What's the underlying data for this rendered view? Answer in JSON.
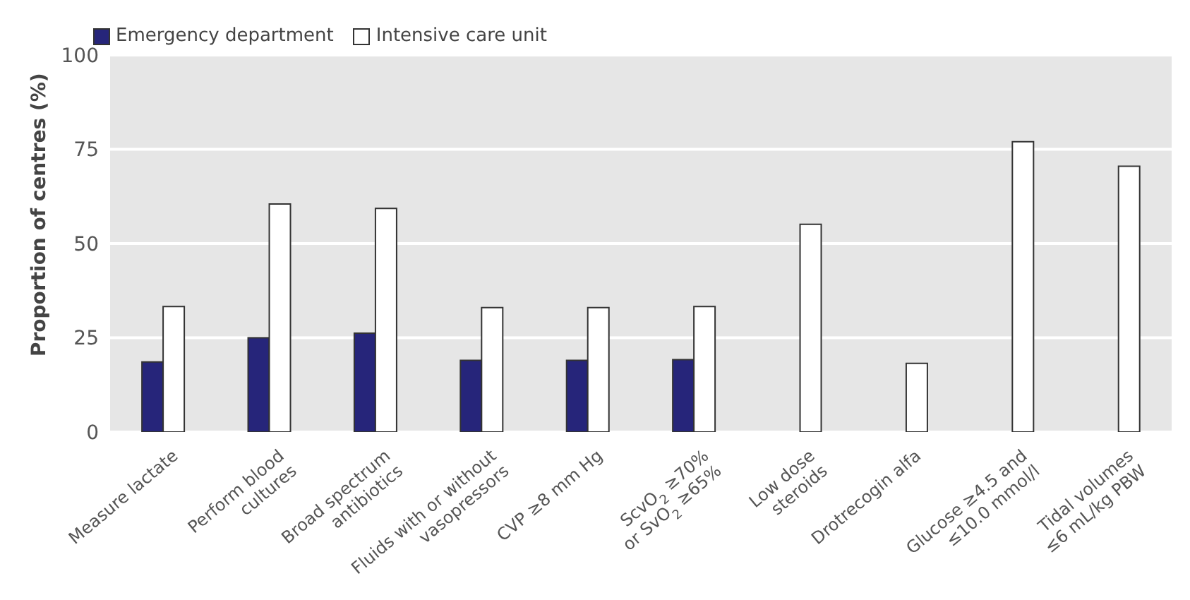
{
  "chart_data": {
    "type": "bar",
    "ylabel": "Proportion of centres (%)",
    "categories": [
      "Measure lactate",
      "Perform blood\ncultures",
      "Broad spectrum\nantibiotics",
      "Fluids with or without\nvasopressors",
      "CVP ≥8 mm Hg",
      "ScvO$_{2}$ ≥70%\nor SvO$_{2}$ ≥65%",
      "Low dose\nsteroids",
      "Drotrecogin alfa",
      "Glucose ≥4.5 and\n≤10.0 mmol/l",
      "Tidal volumes\n≤6 mL/kg PBW"
    ],
    "series": [
      {
        "name": "Emergency department",
        "color": "#26257a",
        "values": [
          18.6,
          25,
          26.2,
          19,
          19,
          19.2,
          null,
          null,
          null,
          null
        ]
      },
      {
        "name": "Intensive care unit",
        "color": "#ffffff",
        "values": [
          33.3,
          60.5,
          59.3,
          33,
          33,
          33.3,
          55.1,
          18.2,
          77,
          70.5
        ]
      }
    ],
    "ylim": [
      0,
      100
    ],
    "yticks": [
      0,
      25,
      50,
      75,
      100
    ],
    "grid": "y",
    "legend": "top left"
  }
}
